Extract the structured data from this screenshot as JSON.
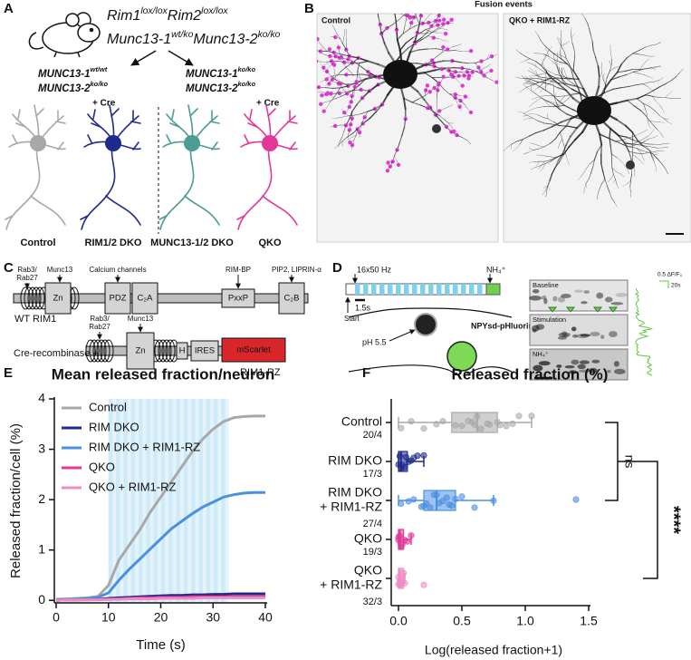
{
  "panels": {
    "A": {
      "label": "A",
      "genotype": [
        [
          "Rim1",
          "lox/lox",
          "Rim2",
          "lox/lox"
        ],
        [
          "Munc13-1",
          "wt/ko",
          "Munc13-2",
          "ko/ko"
        ]
      ],
      "left": [
        [
          "MUNC13-1",
          "wt/wt"
        ],
        [
          "MUNC13-2",
          "ko/ko"
        ]
      ],
      "right": [
        [
          "MUNC13-1",
          "ko/ko"
        ],
        [
          "MUNC13-2",
          "ko/ko"
        ]
      ],
      "cre": "+ Cre",
      "neurons": [
        {
          "name": "Control",
          "color": "#a8a8a8"
        },
        {
          "name": "RIM1/2 DKO",
          "color": "#1f2a8c"
        },
        {
          "name": "MUNC13-1/2 DKO",
          "color": "#4a9c95"
        },
        {
          "name": "QKO",
          "color": "#e0399a"
        }
      ]
    },
    "B": {
      "label": "B",
      "title": "Fusion events",
      "images": [
        "Control",
        "QKO + RIM1-RZ"
      ]
    },
    "C": {
      "label": "C",
      "wt": {
        "name": "WT RIM1",
        "annotations": [
          "Rab3/",
          "Rab27",
          "Munc13",
          "Calcium channels",
          "RIM-BP",
          "PIP2, LIPRIN-α"
        ],
        "domains": [
          "Zn",
          "PDZ",
          "C₂A",
          "PxxP",
          "C₂B"
        ]
      },
      "rz": {
        "prefix": "Cre-recombinase +",
        "name": "RIM1-RZ",
        "annotations": [
          "Rab3/",
          "Rab27",
          "Munc13"
        ],
        "domains": [
          "Zn",
          "H",
          "IRES",
          "mScarlet"
        ]
      }
    },
    "D": {
      "label": "D",
      "protocol": "16x50 Hz",
      "nh4": "NH₄⁺",
      "duration": "1.5s",
      "start": "Start",
      "ph": "pH 5.5",
      "reporter": "NPYsd-pHluorin",
      "rows": [
        "Baseline",
        "Stimulation",
        "NH₄⁺"
      ],
      "scale": [
        "0.5 ΔF/F₀",
        "20s"
      ]
    }
  },
  "chart_data": [
    {
      "type": "line",
      "panel_label": "E",
      "title": "Mean released fraction/neuron",
      "ylabel": "Released fraction/cell (%)",
      "xlabel": "Time (s)",
      "x": [
        0,
        2,
        4,
        6,
        8,
        10,
        12,
        14,
        16,
        18,
        20,
        22,
        24,
        26,
        28,
        30,
        32,
        34,
        36,
        38,
        40
      ],
      "series": [
        {
          "name": "Control",
          "color": "#a8a8a8",
          "values": [
            0.02,
            0.03,
            0.04,
            0.05,
            0.08,
            0.3,
            0.8,
            1.1,
            1.4,
            1.75,
            2.05,
            2.35,
            2.65,
            2.95,
            3.2,
            3.4,
            3.55,
            3.63,
            3.65,
            3.66,
            3.66
          ]
        },
        {
          "name": "RIM DKO",
          "color": "#1f2a8c",
          "values": [
            0,
            0.01,
            0.01,
            0.02,
            0.02,
            0.04,
            0.05,
            0.06,
            0.07,
            0.08,
            0.09,
            0.1,
            0.1,
            0.11,
            0.11,
            0.12,
            0.12,
            0.13,
            0.13,
            0.13,
            0.13
          ]
        },
        {
          "name": "RIM DKO + RIM1-RZ",
          "color": "#4a90e2",
          "values": [
            0.02,
            0.02,
            0.03,
            0.04,
            0.06,
            0.15,
            0.4,
            0.62,
            0.82,
            1.02,
            1.22,
            1.42,
            1.57,
            1.72,
            1.85,
            1.95,
            2.05,
            2.1,
            2.13,
            2.14,
            2.14
          ]
        },
        {
          "name": "QKO",
          "color": "#e0399a",
          "values": [
            0,
            0.01,
            0.01,
            0.01,
            0.02,
            0.02,
            0.03,
            0.04,
            0.05,
            0.05,
            0.06,
            0.06,
            0.06,
            0.07,
            0.07,
            0.07,
            0.07,
            0.07,
            0.07,
            0.07,
            0.07
          ]
        },
        {
          "name": "QKO + RIM1-RZ",
          "color": "#ee8cc4",
          "values": [
            0,
            0.01,
            0.01,
            0.01,
            0.01,
            0.02,
            0.02,
            0.03,
            0.03,
            0.03,
            0.04,
            0.04,
            0.04,
            0.04,
            0.05,
            0.05,
            0.05,
            0.05,
            0.05,
            0.05,
            0.05
          ]
        }
      ],
      "xlim": [
        0,
        40
      ],
      "xticks": [
        0,
        10,
        20,
        30,
        40
      ],
      "ylim": [
        -0.05,
        4
      ],
      "yticks": [
        0,
        1,
        2,
        3,
        4
      ],
      "stimulation": [
        10,
        33
      ],
      "stimulation_color": "#cfeaf8",
      "legend": "upper left"
    },
    {
      "type": "box",
      "panel_label": "F",
      "title": "Released fraction (%)",
      "xlabel": "Log(released fraction+1)",
      "orientation": "horizontal",
      "categories": [
        [
          "Control"
        ],
        [
          "RIM DKO"
        ],
        [
          "RIM DKO",
          "+ RIM1-RZ"
        ],
        [
          "QKO"
        ],
        [
          "QKO",
          "+ RIM1-RZ"
        ]
      ],
      "n_labels": [
        "20/4",
        "17/3",
        "27/4",
        "19/3",
        "32/3"
      ],
      "colors": [
        "#a8a8a8",
        "#1f2a8c",
        "#4a90e2",
        "#e0399a",
        "#ee8cc4"
      ],
      "boxes": [
        {
          "min": 0,
          "q1": 0.42,
          "median": 0.62,
          "q3": 0.78,
          "max": 1.05,
          "points": [
            0.02,
            0.1,
            0.2,
            0.3,
            0.35,
            0.45,
            0.5,
            0.55,
            0.58,
            0.6,
            0.62,
            0.65,
            0.7,
            0.72,
            0.78,
            0.8,
            0.85,
            0.9,
            0.95,
            1.05
          ]
        },
        {
          "min": 0,
          "q1": 0,
          "median": 0.02,
          "q3": 0.07,
          "max": 0.2,
          "points": [
            0,
            0.01,
            0.02,
            0.03,
            0.05,
            0.06,
            0.08,
            0.1,
            0.12,
            0.15,
            0.2
          ]
        },
        {
          "min": 0,
          "q1": 0.2,
          "median": 0.3,
          "q3": 0.45,
          "max": 0.75,
          "points": [
            0.02,
            0.08,
            0.12,
            0.18,
            0.2,
            0.22,
            0.25,
            0.28,
            0.3,
            0.32,
            0.35,
            0.38,
            0.4,
            0.42,
            0.45,
            0.5,
            0.6,
            0.75,
            1.4
          ]
        },
        {
          "min": 0,
          "q1": 0,
          "median": 0.01,
          "q3": 0.04,
          "max": 0.1,
          "points": [
            0,
            0,
            0.01,
            0.02,
            0.03,
            0.05,
            0.07,
            0.1
          ]
        },
        {
          "min": 0,
          "q1": 0,
          "median": 0.01,
          "q3": 0.04,
          "max": 0.05,
          "points": [
            0,
            0,
            0.01,
            0.01,
            0.02,
            0.03,
            0.04,
            0.05,
            0.2
          ]
        }
      ],
      "xlim": [
        0,
        1.5
      ],
      "xticks": [
        {
          "value": 0,
          "label": "0.0"
        },
        0.5,
        {
          "value": 1,
          "label": "1.0"
        },
        1.5
      ],
      "annotations": [
        "ns",
        "****"
      ]
    }
  ]
}
